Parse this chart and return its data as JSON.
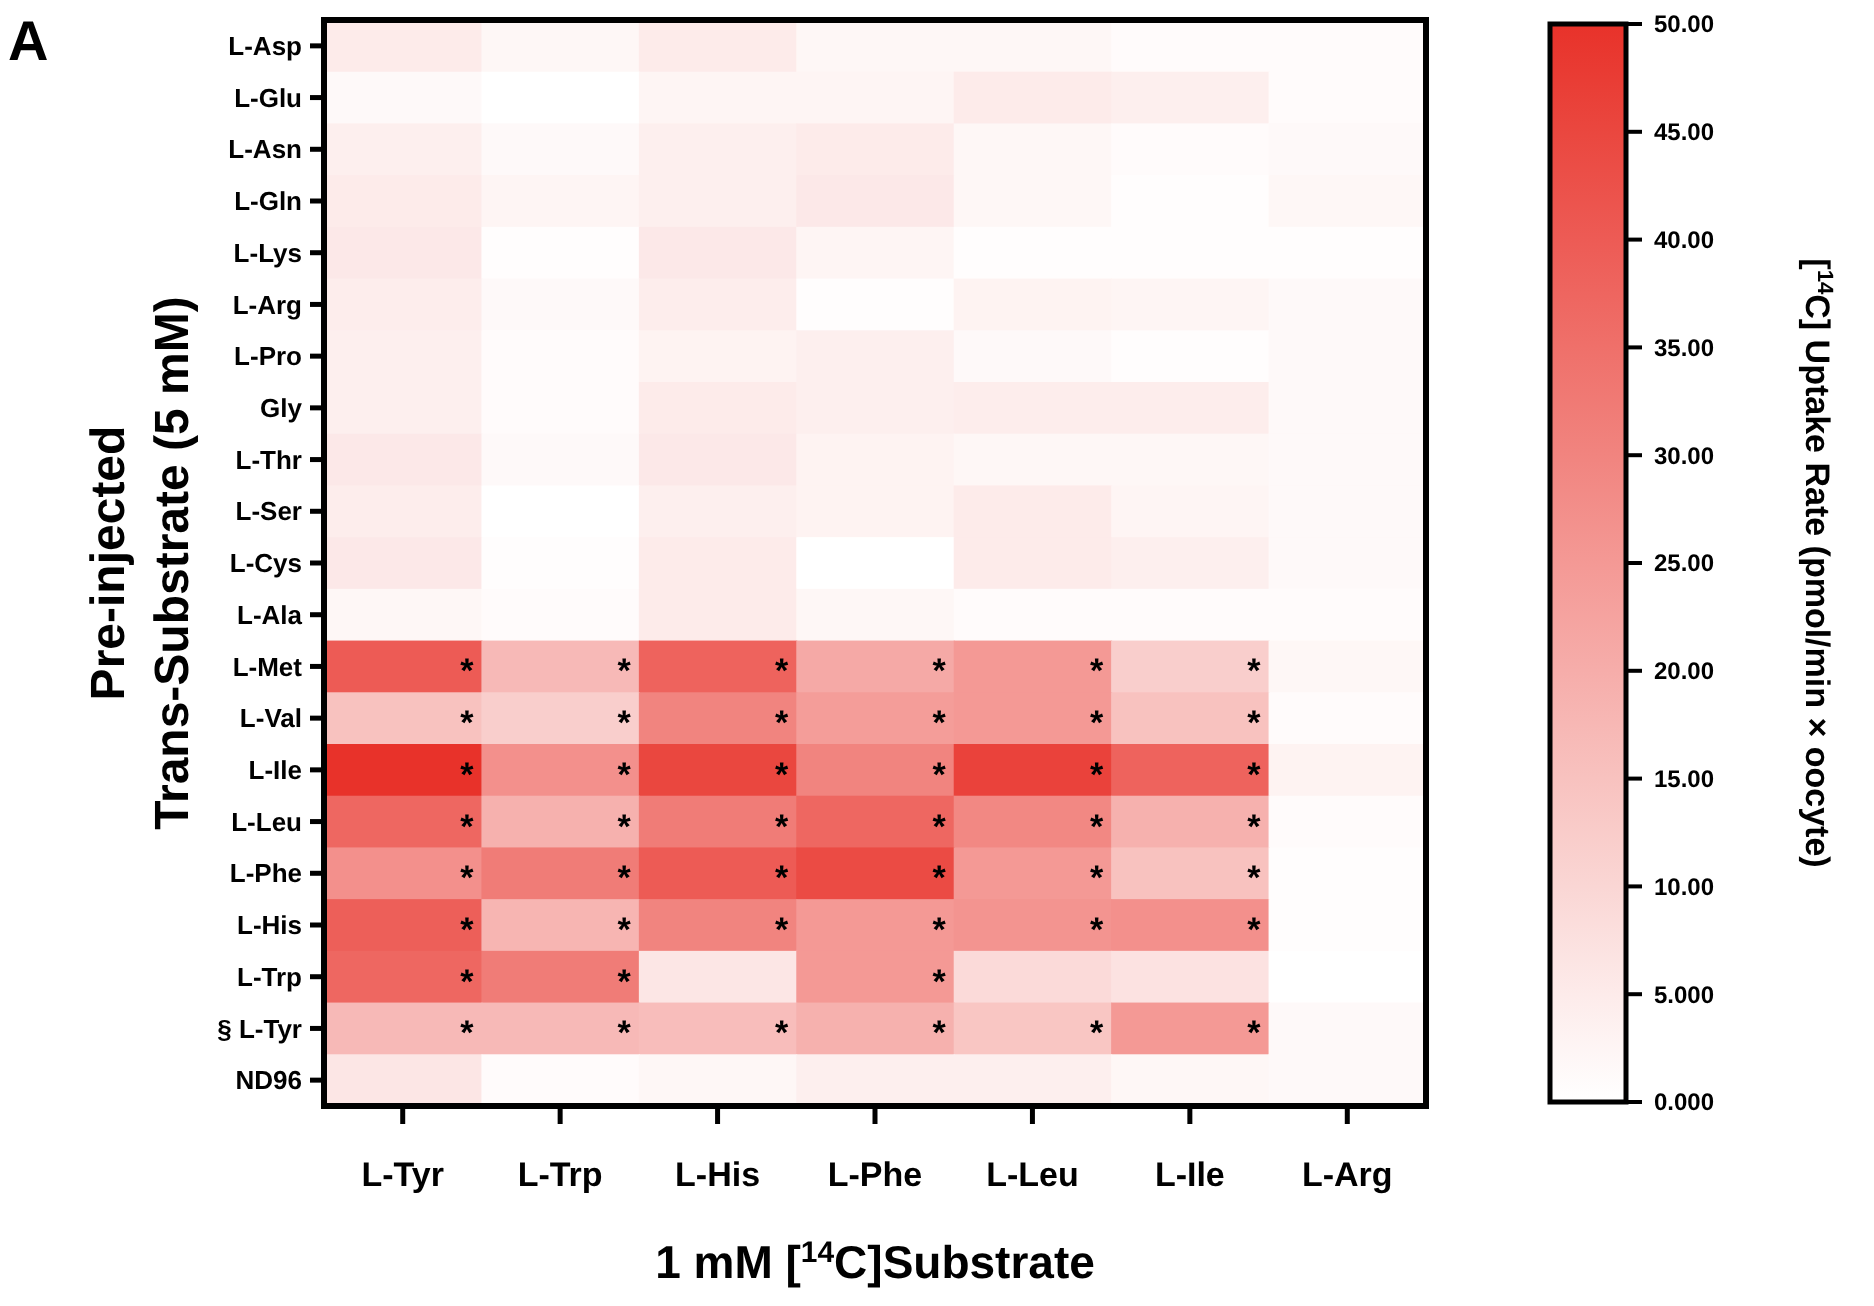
{
  "chart_data": {
    "type": "heatmap",
    "ylabel": "Pre-injected\nTrans-Substrate (5 mM)",
    "xlabel": "1 mM [$^{14}$C]Substrate",
    "clabel": "[$^{14}$C] Uptake Rate (pmol/min × oocyte)",
    "categories": [
      "L-Tyr",
      "L-Trp",
      "L-His",
      "L-Phe",
      "L-Leu",
      "L-Ile",
      "L-Arg"
    ],
    "y_categories": [
      "L-Asp",
      "L-Glu",
      "L-Asn",
      "L-Gln",
      "L-Lys",
      "L-Arg",
      "L-Pro",
      "Gly",
      "L-Thr",
      "L-Ser",
      "L-Cys",
      "L-Ala",
      "L-Met",
      "L-Val",
      "L-Ile",
      "L-Leu",
      "L-Phe",
      "L-His",
      "L-Trp",
      "§ L-Tyr",
      "ND96"
    ],
    "cells": [
      [
        5,
        2,
        5,
        2,
        2,
        1,
        1
      ],
      [
        1.5,
        0,
        2.5,
        2.5,
        5,
        4,
        1
      ],
      [
        4,
        1.5,
        4,
        5,
        2,
        1,
        1.5
      ],
      [
        5,
        2.5,
        4,
        5.5,
        2,
        0.5,
        2
      ],
      [
        5.5,
        0.5,
        5.5,
        2.5,
        0.5,
        0.5,
        0.5
      ],
      [
        4.5,
        1.5,
        4.5,
        0.5,
        3,
        2.5,
        1.5
      ],
      [
        4,
        1,
        3,
        4,
        1.5,
        0.5,
        1.5
      ],
      [
        4,
        1,
        5,
        4,
        4.5,
        4.5,
        1.5
      ],
      [
        5.5,
        1.5,
        5.5,
        3,
        2,
        2,
        1.5
      ],
      [
        4.5,
        0,
        4,
        3,
        5,
        2.5,
        1.5
      ],
      [
        5.5,
        0.5,
        5,
        0,
        5,
        4,
        1.5
      ],
      [
        2,
        1,
        5,
        2,
        1,
        1,
        1
      ],
      [
        40,
        17,
        38,
        21,
        25,
        12,
        2
      ],
      [
        15,
        12,
        30,
        24,
        25,
        15,
        1
      ],
      [
        50,
        27,
        45,
        30,
        46,
        38,
        3
      ],
      [
        37,
        19,
        32,
        37,
        29,
        19,
        1
      ],
      [
        27,
        32,
        40,
        44,
        25,
        15,
        0.5
      ],
      [
        39,
        18,
        30,
        25,
        26,
        27,
        0.5
      ],
      [
        37,
        32,
        6,
        25,
        9,
        7,
        0
      ],
      [
        17,
        17,
        16,
        19,
        14,
        25,
        1.5
      ],
      [
        6,
        1,
        2,
        4,
        4,
        2,
        1.5
      ]
    ],
    "cell_labels": [
      [
        null,
        null,
        null,
        null,
        null,
        null,
        null
      ],
      [
        null,
        null,
        null,
        null,
        null,
        null,
        null
      ],
      [
        null,
        null,
        null,
        null,
        null,
        null,
        null
      ],
      [
        null,
        null,
        null,
        null,
        null,
        null,
        null
      ],
      [
        null,
        null,
        null,
        null,
        null,
        null,
        null
      ],
      [
        null,
        null,
        null,
        null,
        null,
        null,
        null
      ],
      [
        null,
        null,
        null,
        null,
        null,
        null,
        null
      ],
      [
        null,
        null,
        null,
        null,
        null,
        null,
        null
      ],
      [
        null,
        null,
        null,
        null,
        null,
        null,
        null
      ],
      [
        null,
        null,
        null,
        null,
        null,
        null,
        null
      ],
      [
        null,
        null,
        null,
        null,
        null,
        null,
        null
      ],
      [
        null,
        null,
        null,
        null,
        null,
        null,
        null
      ],
      [
        "*",
        "*",
        "*",
        "*",
        "*",
        "*",
        null
      ],
      [
        "*",
        "*",
        "*",
        "*",
        "*",
        "*",
        null
      ],
      [
        "*",
        "*",
        "*",
        "*",
        "*",
        "*",
        null
      ],
      [
        "*",
        "*",
        "*",
        "*",
        "*",
        "*",
        null
      ],
      [
        "*",
        "*",
        "*",
        "*",
        "*",
        "*",
        null
      ],
      [
        "*",
        "*",
        "*",
        "*",
        "*",
        "*",
        null
      ],
      [
        "*",
        "*",
        null,
        "*",
        null,
        null,
        null
      ],
      [
        "*",
        "*",
        "*",
        "*",
        "*",
        "*",
        null
      ],
      [
        null,
        null,
        null,
        null,
        null,
        null,
        null
      ]
    ],
    "clim": [
      0,
      50
    ],
    "cticks": [
      {
        "value": 0,
        "label": "0.000"
      },
      {
        "value": 5,
        "label": "5.000"
      },
      {
        "value": 10,
        "label": "10.00"
      },
      {
        "value": 15,
        "label": "15.00"
      },
      {
        "value": 20,
        "label": "20.00"
      },
      {
        "value": 25,
        "label": "25.00"
      },
      {
        "value": 30,
        "label": "30.00"
      },
      {
        "value": 35,
        "label": "35.00"
      },
      {
        "value": 40,
        "label": "40.00"
      },
      {
        "value": 45,
        "label": "45.00"
      },
      {
        "value": 50,
        "label": "50.00"
      }
    ],
    "annotations": [
      "A"
    ]
  }
}
